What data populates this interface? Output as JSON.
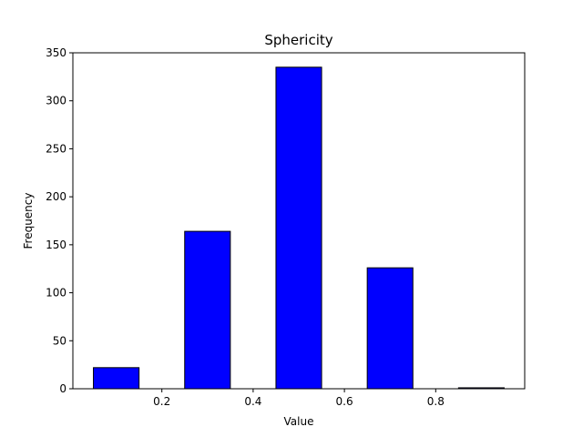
{
  "chart_data": {
    "type": "bar",
    "title": "Sphericity",
    "xlabel": "Value",
    "ylabel": "Frequency",
    "xlim": [
      0.005,
      0.995
    ],
    "ylim": [
      0,
      350
    ],
    "xticks": [
      0.2,
      0.4,
      0.6,
      0.8
    ],
    "xtick_labels": [
      "0.2",
      "0.4",
      "0.6",
      "0.8"
    ],
    "yticks": [
      0,
      50,
      100,
      150,
      200,
      250,
      300,
      350
    ],
    "ytick_labels": [
      "0",
      "50",
      "100",
      "150",
      "200",
      "250",
      "300",
      "350"
    ],
    "bins": [
      {
        "x0": 0.05,
        "x1": 0.15,
        "value": 22
      },
      {
        "x0": 0.25,
        "x1": 0.35,
        "value": 164
      },
      {
        "x0": 0.45,
        "x1": 0.55,
        "value": 335
      },
      {
        "x0": 0.65,
        "x1": 0.75,
        "value": 126
      },
      {
        "x0": 0.85,
        "x1": 0.95,
        "value": 1
      }
    ],
    "bar_color": "#0000ff",
    "edge_color": "#000000",
    "grid": false
  }
}
